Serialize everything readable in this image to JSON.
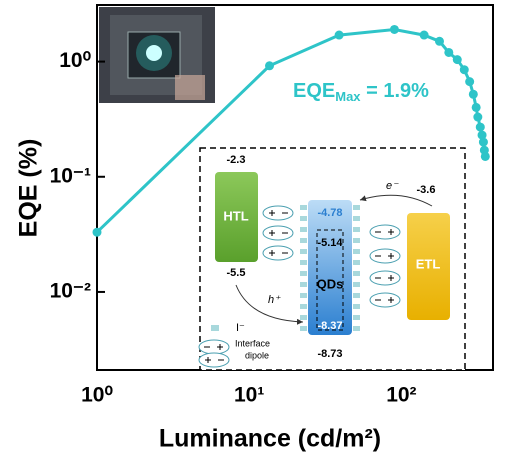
{
  "chart_data": {
    "type": "line",
    "x_label": "Luminance (cd/m²)",
    "y_label": "EQE (%)",
    "log_x": true,
    "log_y": true,
    "xlim": [
      1,
      400
    ],
    "ylim": [
      0.0021,
      3.1
    ],
    "xticks": [
      {
        "value": 1,
        "label": "10⁰"
      },
      {
        "value": 10,
        "label": "10¹"
      },
      {
        "value": 100,
        "label": "10²"
      }
    ],
    "yticks": [
      {
        "value": 0.01,
        "label": "10⁻²"
      },
      {
        "value": 0.1,
        "label": "10⁻¹"
      },
      {
        "value": 1,
        "label": "10⁰"
      }
    ],
    "series": [
      {
        "color": "#2ec4c8",
        "x": [
          1,
          13.6,
          39,
          90,
          141,
          178,
          205,
          233,
          259,
          281,
          297,
          310,
          318,
          330,
          339,
          346,
          351,
          356
        ],
        "values": [
          0.033,
          0.92,
          1.7,
          1.9,
          1.7,
          1.5,
          1.2,
          1.04,
          0.85,
          0.67,
          0.52,
          0.4,
          0.33,
          0.27,
          0.23,
          0.2,
          0.17,
          0.15
        ]
      }
    ],
    "annotation": {
      "text": "EQE",
      "sub": "Max",
      "rest": " = 1.9%"
    }
  },
  "inset_diagram": {
    "htl": {
      "label": "HTL",
      "top": "-2.3",
      "bottom": "-5.5"
    },
    "qds": {
      "label": "QDs",
      "top": "-4.78",
      "inner_top": "-5.14",
      "inner_bottom": "-8.37",
      "bottom": "-8.73"
    },
    "etl": {
      "label": "ETL",
      "top": "-3.6"
    },
    "electron": "e⁻",
    "hole": "h⁺",
    "legend": {
      "iodide": "I⁻",
      "dipole_1": "Interface",
      "dipole_2": "dipole"
    }
  }
}
